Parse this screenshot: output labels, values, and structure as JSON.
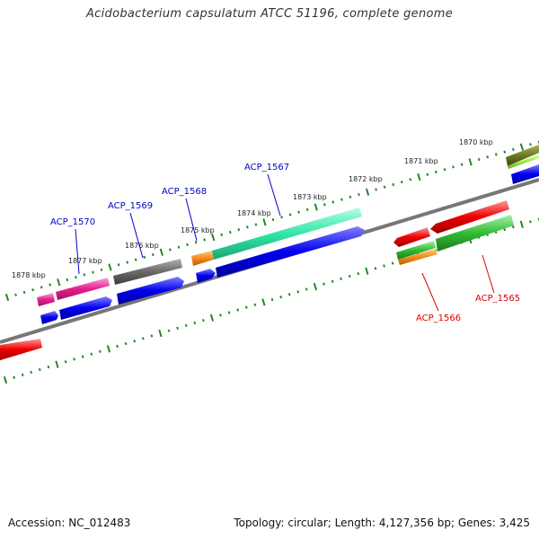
{
  "title": "Acidobacterium capsulatum ATCC 51196, complete genome",
  "footer": {
    "accession": "Accession: NC_012483",
    "summary": "Topology: circular; Length: 4,127,356 bp; Genes: 3,425"
  },
  "scale": {
    "ticks": [
      "1870 kbp",
      "1871 kbp",
      "1872 kbp",
      "1873 kbp",
      "1874 kbp",
      "1875 kbp",
      "1876 kbp",
      "1877 kbp",
      "1878 kbp"
    ]
  },
  "genes": [
    {
      "label": "ACP_1570",
      "strand": "forward",
      "color": "#e61f8c"
    },
    {
      "label": "ACP_1569",
      "strand": "forward",
      "color": "#666666"
    },
    {
      "label": "ACP_1568",
      "strand": "forward",
      "color": "#f28c1a"
    },
    {
      "label": "ACP_1567",
      "strand": "forward",
      "color": "#33e6a6"
    },
    {
      "label": "ACP_1566",
      "strand": "reverse",
      "color": "#26b33a"
    },
    {
      "label": "ACP_1565",
      "strand": "reverse",
      "color": "#33bb33"
    }
  ],
  "colors": {
    "forward_label": "#0000cc",
    "reverse_label": "#dd0000",
    "cds": "#0000ee",
    "reverse_feature": "#ee0000",
    "backbone": "#777777",
    "tick": "#228822"
  }
}
